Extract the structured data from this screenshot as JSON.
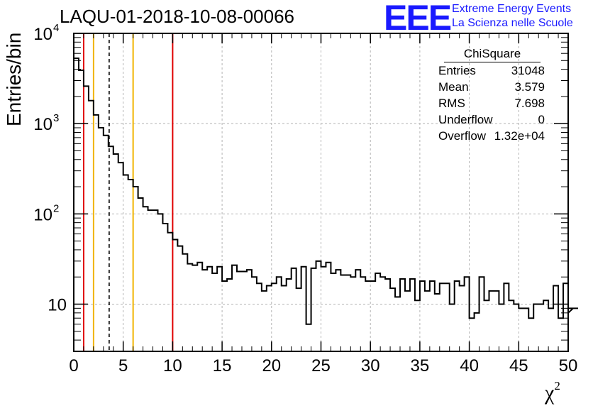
{
  "title": "LAQU-01-2018-10-08-00066",
  "logo": {
    "mark": "EEE",
    "line1": "Extreme Energy Events",
    "line2": "La Scienza nelle Scuole"
  },
  "stats": {
    "name": "ChiSquare",
    "rows": [
      {
        "key": "Entries",
        "value": "31048"
      },
      {
        "key": "Mean",
        "value": "3.579"
      },
      {
        "key": "RMS",
        "value": "7.698"
      },
      {
        "key": "Underflow",
        "value": "0"
      },
      {
        "key": "Overflow",
        "value": "1.32e+04"
      }
    ]
  },
  "chart_data": {
    "type": "histogram",
    "title": "LAQU-01-2018-10-08-00066",
    "xlabel": "χ2",
    "ylabel": "Entries/bin",
    "xlim": [
      0,
      50
    ],
    "ylim": [
      3,
      10000
    ],
    "yscale": "log",
    "grid": true,
    "bin_width": 0.5,
    "x_ticks": [
      0,
      5,
      10,
      15,
      20,
      25,
      30,
      35,
      40,
      45,
      50
    ],
    "y_ticks": [
      {
        "value": 10,
        "label": "10"
      },
      {
        "value": 100,
        "label": "10",
        "exponent": "2"
      },
      {
        "value": 1000,
        "label": "10",
        "exponent": "3"
      },
      {
        "value": 10000,
        "label": "10",
        "exponent": "4"
      }
    ],
    "values": [
      5300,
      3900,
      2600,
      1800,
      1250,
      900,
      740,
      560,
      460,
      370,
      270,
      240,
      200,
      150,
      120,
      110,
      110,
      100,
      78,
      62,
      52,
      44,
      36,
      28,
      27,
      29,
      24,
      26,
      22,
      26,
      18,
      19,
      27,
      23,
      23,
      24,
      20,
      17,
      14,
      16,
      17,
      20,
      16,
      19,
      25,
      15,
      26,
      6,
      25,
      30,
      26,
      29,
      22,
      24,
      21,
      21,
      20,
      24,
      20,
      18,
      18,
      22,
      20,
      19,
      15,
      12,
      19,
      14,
      19,
      11,
      18,
      14,
      18,
      13,
      17,
      17,
      10,
      18,
      16,
      20,
      7,
      8,
      20,
      11,
      14,
      14,
      10,
      17,
      11,
      10,
      9,
      9,
      7,
      10,
      10,
      11,
      9,
      16,
      7,
      17,
      8,
      9,
      9
    ],
    "vertical_lines": [
      {
        "x": 1,
        "color": "#e00000",
        "style": "solid"
      },
      {
        "x": 2,
        "color": "#f0b400",
        "style": "solid"
      },
      {
        "x": 3.579,
        "color": "#000000",
        "style": "dashed"
      },
      {
        "x": 6,
        "color": "#f0b400",
        "style": "solid"
      },
      {
        "x": 10,
        "color": "#e00000",
        "style": "solid"
      }
    ]
  }
}
